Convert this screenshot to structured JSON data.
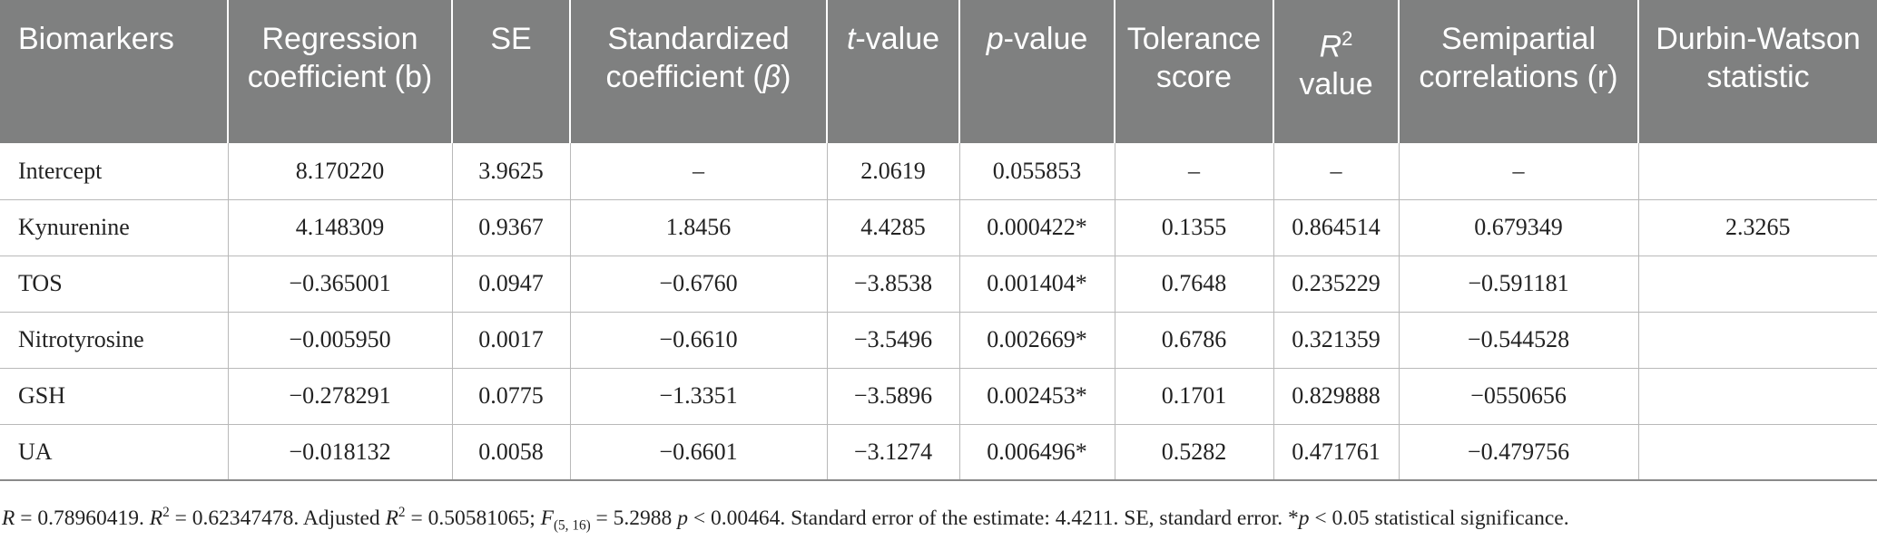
{
  "header": {
    "biomarkers": "Biomarkers",
    "regression": "Regression coefficient (b)",
    "se": "SE",
    "standardized_pre": "Standardized coefficient (",
    "standardized_beta": "β",
    "standardized_post": ")",
    "t_italic": "t",
    "t_rest": "-value",
    "p_italic": "p",
    "p_rest": "-value",
    "tolerance": "Tolerance score",
    "r2_R": "R",
    "r2_sup": "2",
    "r2_rest": " value",
    "semipartial": "Semipartial correlations (r)",
    "durbin": "Durbin-Watson statistic"
  },
  "rows": [
    {
      "name": "Intercept",
      "b": "8.170220",
      "se": "3.9625",
      "beta": "–",
      "t": "2.0619",
      "p": "0.055853",
      "tol": "–",
      "r2": "–",
      "semi": "–",
      "dw": ""
    },
    {
      "name": "Kynurenine",
      "b": "4.148309",
      "se": "0.9367",
      "beta": "1.8456",
      "t": "4.4285",
      "p": "0.000422*",
      "tol": "0.1355",
      "r2": "0.864514",
      "semi": "0.679349",
      "dw": "2.3265"
    },
    {
      "name": "TOS",
      "b": "−0.365001",
      "se": "0.0947",
      "beta": "−0.6760",
      "t": "−3.8538",
      "p": "0.001404*",
      "tol": "0.7648",
      "r2": "0.235229",
      "semi": "−0.591181",
      "dw": ""
    },
    {
      "name": "Nitrotyrosine",
      "b": "−0.005950",
      "se": "0.0017",
      "beta": "−0.6610",
      "t": "−3.5496",
      "p": "0.002669*",
      "tol": "0.6786",
      "r2": "0.321359",
      "semi": "−0.544528",
      "dw": ""
    },
    {
      "name": "GSH",
      "b": "−0.278291",
      "se": "0.0775",
      "beta": "−1.3351",
      "t": "−3.5896",
      "p": "0.002453*",
      "tol": "0.1701",
      "r2": "0.829888",
      "semi": "−0550656",
      "dw": ""
    },
    {
      "name": "UA",
      "b": "−0.018132",
      "se": "0.0058",
      "beta": "−0.6601",
      "t": "−3.1274",
      "p": "0.006496*",
      "tol": "0.5282",
      "r2": "0.471761",
      "semi": "−0.479756",
      "dw": ""
    }
  ],
  "footnote": {
    "r_label": "R",
    "r_val": " = 0.78960419. ",
    "r2_label": "R",
    "r2_sup": "2",
    "r2_val": " = 0.62347478. Adjusted ",
    "adj_label": "R",
    "adj_sup": "2",
    "adj_val": " = 0.50581065; ",
    "f_label": "F",
    "f_sub": "(5, 16)",
    "f_val": " = 5.2988 ",
    "p_label": "p",
    "p_val": " < 0.00464. Standard error of the estimate: 4.4211. SE, standard error. *",
    "p2_label": "p",
    "p2_val": " < 0.05 statistical significance."
  }
}
